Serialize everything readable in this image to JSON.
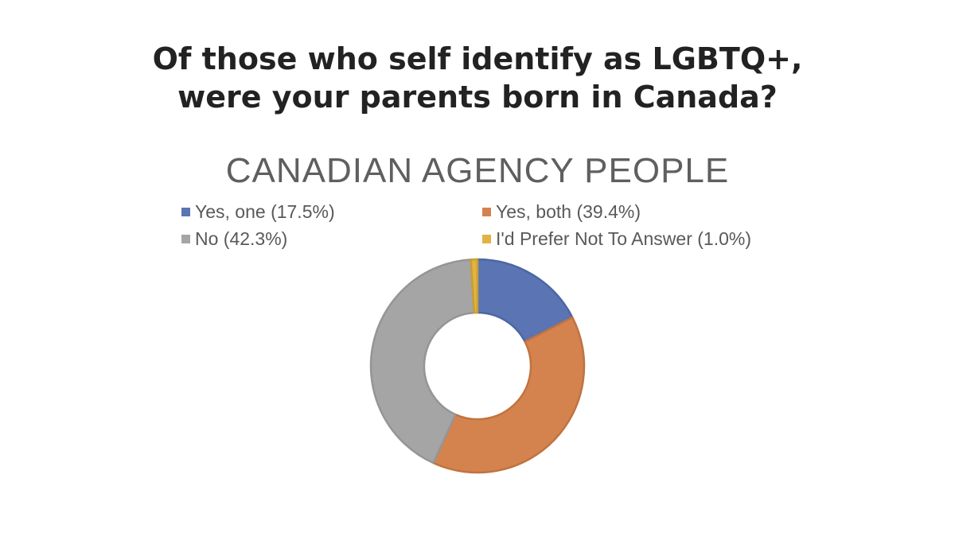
{
  "headline": {
    "line1": "Of those who self identify as LGBTQ+,",
    "line2": "were your parents born in Canada?"
  },
  "chart_data": {
    "type": "pie",
    "variant": "donut",
    "title": "CANADIAN AGENCY PEOPLE",
    "legend_position": "top",
    "categories": [
      "Yes, one",
      "Yes, both",
      "No",
      "I'd Prefer Not To Answer"
    ],
    "values": [
      17.5,
      39.4,
      42.3,
      1.0
    ],
    "legend_labels": [
      "Yes, one (17.5%)",
      "Yes, both (39.4%)",
      "No (42.3%)",
      "I'd Prefer Not To Answer (1.0%)"
    ],
    "colors": [
      "#5a74b4",
      "#d4834f",
      "#a5a5a5",
      "#e0b444"
    ],
    "border_colors": [
      "#4d66a3",
      "#c0733f",
      "#959595",
      "#c99e33"
    ]
  }
}
